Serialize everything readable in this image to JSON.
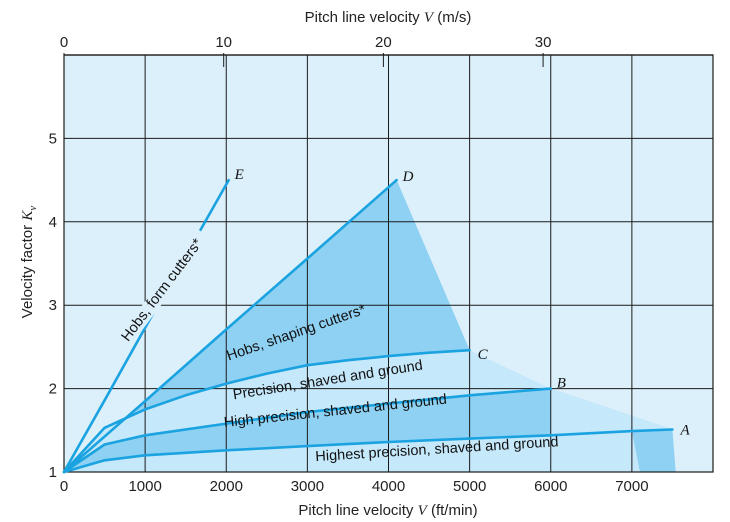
{
  "chart_data": {
    "type": "line",
    "xlabel_bottom": "Pitch line velocity",
    "xlabel_bottom_var": "V",
    "xlabel_bottom_unit": "(ft/min)",
    "xlabel_top": "Pitch line velocity",
    "xlabel_top_var": "V",
    "xlabel_top_unit": "(m/s)",
    "ylabel": "Velocity factor",
    "ylabel_var": "K",
    "ylabel_sub": "v",
    "xlim": [
      0,
      8000
    ],
    "ylim": [
      1,
      6
    ],
    "x_ticks": [
      "0",
      "1000",
      "2000",
      "3000",
      "4000",
      "5000",
      "6000",
      "7000"
    ],
    "top_ticks": [
      {
        "value": 0,
        "label": "0"
      },
      {
        "value": 10,
        "label": "10"
      },
      {
        "value": 20,
        "label": "20"
      },
      {
        "value": 30,
        "label": "30"
      }
    ],
    "y_ticks": [
      "1",
      "2",
      "3",
      "4",
      "5"
    ],
    "grid": true,
    "colors": {
      "background": "#dcf0fb",
      "band_light": "#c6e8fb",
      "band_dark": "#8fd1f3",
      "curve": "#1aa3e0",
      "grid": "#1a1a1a"
    },
    "series": [
      {
        "name": "Hobs, form cutters*",
        "point": "E",
        "x": [
          0,
          500,
          1000,
          1500,
          2030
        ],
        "y": [
          1,
          1.86,
          2.73,
          3.59,
          4.5
        ]
      },
      {
        "name": "Hobs, shaping cutters*",
        "point": "D",
        "x": [
          0,
          1000,
          2000,
          3000,
          4100
        ],
        "y": [
          1,
          1.85,
          2.71,
          3.56,
          4.5
        ]
      },
      {
        "name": "Precision, shaved and ground",
        "point": "C",
        "x": [
          0,
          500,
          1000,
          1500,
          2000,
          2500,
          3000,
          3500,
          4000,
          4500,
          5000
        ],
        "y": [
          1,
          1.53,
          1.75,
          1.92,
          2.06,
          2.18,
          2.28,
          2.34,
          2.39,
          2.43,
          2.46
        ]
      },
      {
        "name": "High precision, shaved and ground",
        "point": "B",
        "x": [
          0,
          500,
          1000,
          2000,
          3000,
          4000,
          5000,
          6000
        ],
        "y": [
          1,
          1.33,
          1.44,
          1.58,
          1.72,
          1.82,
          1.92,
          2.0
        ]
      },
      {
        "name": "Highest precision, shaved and ground",
        "point": "A",
        "x": [
          0,
          500,
          1000,
          2000,
          3000,
          4000,
          5000,
          6000,
          7000,
          7500
        ],
        "y": [
          1,
          1.14,
          1.2,
          1.26,
          1.31,
          1.36,
          1.4,
          1.44,
          1.49,
          1.51
        ]
      }
    ]
  }
}
